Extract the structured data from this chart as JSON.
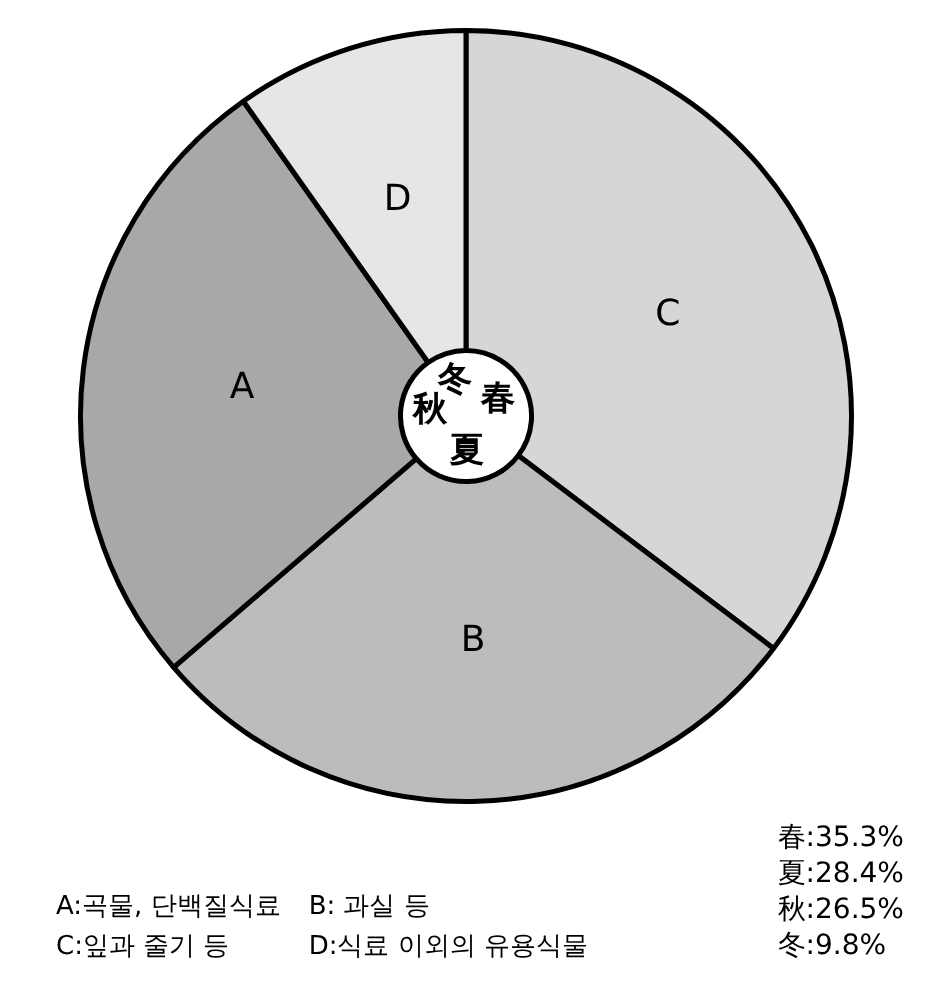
{
  "chart_data": {
    "type": "donut",
    "categories": [
      "春",
      "夏",
      "秋",
      "冬"
    ],
    "values": [
      35.3,
      28.4,
      26.5,
      9.8
    ],
    "value_labels": [
      ":35.3%",
      ":28.4%",
      ":26.5%",
      ":9.8%"
    ],
    "colors": [
      "#d6d6d6",
      "#bcbcbc",
      "#a8a8a8",
      "#e6e6e6"
    ],
    "legend": false,
    "annotations": [
      {
        "text": "C",
        "x": "春"
      },
      {
        "text": "B",
        "x": "夏"
      },
      {
        "text": "A",
        "x": "秋"
      },
      {
        "text": "D",
        "x": "冬"
      },
      "A:곡물, 단백질식료",
      "B: 과실 등",
      "C:잎과 줄기 등",
      "D:식료 이외의 유용식물"
    ]
  }
}
